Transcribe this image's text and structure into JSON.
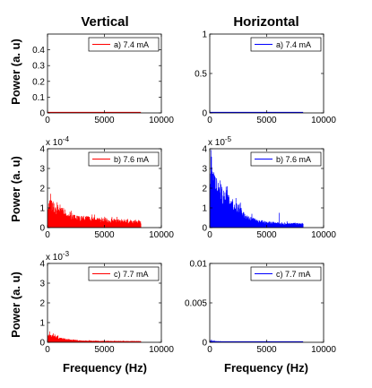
{
  "figure": {
    "col_titles": [
      "Vertical",
      "Horizontal"
    ],
    "ylabel": "Power (a. u)",
    "xlabel": "Frequency (Hz)"
  },
  "chart_data": [
    {
      "type": "area",
      "column": "Vertical",
      "row": 1,
      "legend": "a) 7.4 mA",
      "color": "#ff0000",
      "xlim": [
        0,
        10000
      ],
      "ylim": [
        0,
        0.5
      ],
      "xticks": [
        0,
        5000,
        10000
      ],
      "yticks": [
        0,
        0.1,
        0.2,
        0.3,
        0.4
      ],
      "exponent": "",
      "x_end": 8200,
      "profile": [
        [
          0,
          0.002
        ],
        [
          8200,
          0.001
        ]
      ],
      "noise": 0.0,
      "spikes": []
    },
    {
      "type": "area",
      "column": "Horizontal",
      "row": 1,
      "legend": "a) 7.4 mA",
      "color": "#0000ff",
      "xlim": [
        0,
        10000
      ],
      "ylim": [
        0,
        1
      ],
      "xticks": [
        0,
        5000,
        10000
      ],
      "yticks": [
        0,
        0.5,
        1
      ],
      "exponent": "",
      "x_end": 8200,
      "profile": [
        [
          0,
          0.004
        ],
        [
          8200,
          0.003
        ]
      ],
      "noise": 0.0,
      "spikes": []
    },
    {
      "type": "area",
      "column": "Vertical",
      "row": 2,
      "legend": "b) 7.6 mA",
      "color": "#ff0000",
      "xlim": [
        0,
        10000
      ],
      "ylim": [
        0,
        4
      ],
      "xticks": [
        0,
        5000,
        10000
      ],
      "yticks": [
        0,
        1,
        2,
        3,
        4
      ],
      "exponent": "x 10^-4",
      "x_end": 8200,
      "profile": [
        [
          0,
          0.9
        ],
        [
          300,
          1.1
        ],
        [
          800,
          1.0
        ],
        [
          1500,
          0.7
        ],
        [
          2500,
          0.5
        ],
        [
          4000,
          0.4
        ],
        [
          6000,
          0.33
        ],
        [
          8200,
          0.28
        ]
      ],
      "noise": 0.35,
      "spikes": [
        [
          180,
          1.35
        ],
        [
          420,
          1.25
        ],
        [
          900,
          1.15
        ],
        [
          1300,
          1.0
        ],
        [
          2100,
          0.85
        ]
      ]
    },
    {
      "type": "area",
      "column": "Horizontal",
      "row": 2,
      "legend": "b) 7.6 mA",
      "color": "#0000ff",
      "xlim": [
        0,
        10000
      ],
      "ylim": [
        0,
        4
      ],
      "xticks": [
        0,
        5000,
        10000
      ],
      "yticks": [
        0,
        1,
        2,
        3,
        4
      ],
      "exponent": "x 10^-5",
      "x_end": 8200,
      "profile": [
        [
          0,
          2.6
        ],
        [
          300,
          2.3
        ],
        [
          700,
          1.9
        ],
        [
          1200,
          1.5
        ],
        [
          1800,
          1.2
        ],
        [
          2500,
          0.9
        ],
        [
          3200,
          0.55
        ],
        [
          4000,
          0.35
        ],
        [
          5000,
          0.25
        ],
        [
          6500,
          0.2
        ],
        [
          8200,
          0.18
        ]
      ],
      "noise": 0.3,
      "spikes": [
        [
          100,
          3.0
        ],
        [
          350,
          2.8
        ],
        [
          600,
          2.5
        ],
        [
          1000,
          2.2
        ],
        [
          1500,
          1.9
        ],
        [
          2300,
          1.5
        ],
        [
          2600,
          1.2
        ],
        [
          3700,
          0.7
        ],
        [
          6100,
          0.75
        ]
      ]
    },
    {
      "type": "area",
      "column": "Vertical",
      "row": 3,
      "legend": "c) 7.7 mA",
      "color": "#ff0000",
      "xlim": [
        0,
        10000
      ],
      "ylim": [
        0,
        4
      ],
      "xticks": [
        0,
        5000,
        10000
      ],
      "yticks": [
        0,
        1,
        2,
        3,
        4
      ],
      "exponent": "x 10^-3",
      "x_end": 8200,
      "profile": [
        [
          0,
          0.3
        ],
        [
          400,
          0.35
        ],
        [
          1000,
          0.22
        ],
        [
          2000,
          0.12
        ],
        [
          3000,
          0.08
        ],
        [
          5000,
          0.06
        ],
        [
          8200,
          0.05
        ]
      ],
      "noise": 0.25,
      "spikes": [
        [
          200,
          0.55
        ],
        [
          500,
          0.45
        ],
        [
          900,
          0.35
        ]
      ]
    },
    {
      "type": "area",
      "column": "Horizontal",
      "row": 3,
      "legend": "c) 7.7 mA",
      "color": "#0000ff",
      "xlim": [
        0,
        10000
      ],
      "ylim": [
        0,
        0.01
      ],
      "xticks": [
        0,
        5000,
        10000
      ],
      "yticks": [
        0,
        0.005,
        0.01
      ],
      "exponent": "",
      "x_end": 8200,
      "profile": [
        [
          0,
          0.00018
        ],
        [
          500,
          0.00012
        ],
        [
          1500,
          6e-05
        ],
        [
          8200,
          3e-05
        ]
      ],
      "noise": 0.3,
      "spikes": [
        [
          150,
          0.00035
        ],
        [
          400,
          0.00025
        ]
      ]
    }
  ]
}
